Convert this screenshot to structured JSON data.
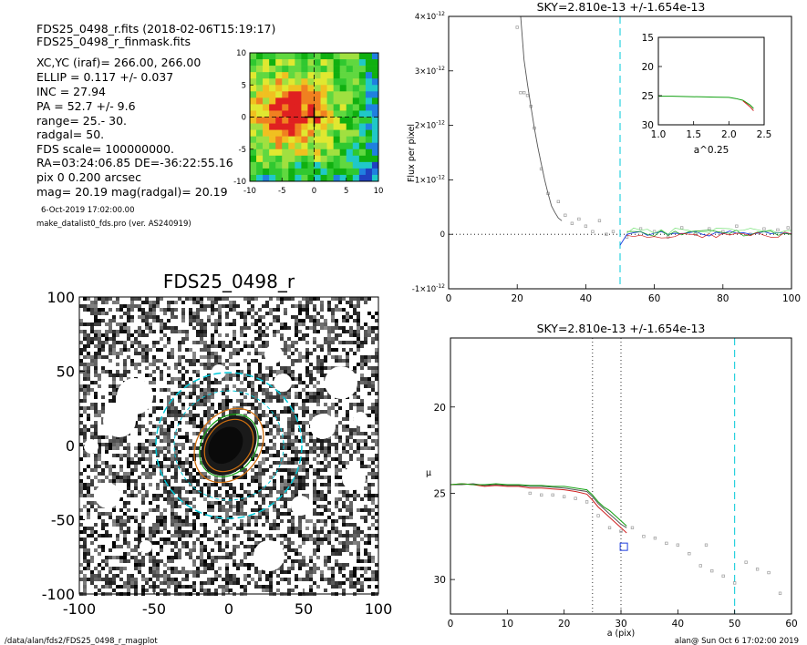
{
  "header": {
    "line1": "FDS25_0498_r.fits  (2018-02-06T15:19:17)",
    "line2": "FDS25_0498_r_finmask.fits",
    "xcyc": "XC,YC (iraf)=   266.00, 266.00",
    "ellip": "ELLIP = 0.117 +/- 0.037",
    "inc": "INC   = 27.94",
    "pa": "PA    = 52.7 +/-   9.6",
    "range": "range=   25.-   30.",
    "radgal": "radgal=   50.",
    "fds_scale": "FDS scale=  100000000.",
    "radec": "RA=03:24:06.85   DE=-36:22:55.16",
    "pix": "pix 0 0.200 arcsec",
    "mag": "mag=  20.19  mag(radgal)=  20.19",
    "date": "6-Oct-2019 17:02:00.00",
    "prog": "make_datalist0_fds.pro (ver. AS240919)"
  },
  "footer": {
    "left": "/data/alan/fds2/FDS25_0498_r_magplot",
    "right": "alan@  Sun Oct  6 17:02:00 2019"
  },
  "colors": {
    "sky_line": "#00c8d8",
    "profile_dark": "#555555",
    "points": "#999999",
    "red": "#d02020",
    "green": "#10a010",
    "orange": "#d07010",
    "blue": "#2040e0",
    "lightgreen": "#70e070"
  },
  "chart_data": [
    {
      "type": "heatmap",
      "name": "residual-map",
      "x_ticks": [
        "-10",
        "-5",
        "0",
        "5",
        "10"
      ],
      "y_ticks": [
        "10",
        "5",
        "0",
        "-5",
        "-10"
      ],
      "xlim": [
        -10,
        10
      ],
      "ylim": [
        -10,
        10
      ]
    },
    {
      "type": "heatmap",
      "name": "galaxy-image",
      "title": "FDS25_0498_r",
      "x_ticks": [
        "-100",
        "-50",
        "0",
        "50",
        "100"
      ],
      "y_ticks": [
        "100",
        "50",
        "0",
        "-50",
        "-100"
      ],
      "xlim": [
        -100,
        100
      ],
      "ylim": [
        -100,
        100
      ],
      "ellipse_center": [
        0,
        0
      ],
      "ellipse_pa": 52.7,
      "circle_radius": 50
    },
    {
      "type": "line",
      "name": "flux-profile",
      "title": "SKY=2.810e-13 +/-1.654e-13",
      "ylabel": "Flux per pixel",
      "xlabel": "",
      "xlim": [
        0,
        100
      ],
      "ylim": [
        -1e-12,
        4e-12
      ],
      "x_ticks": [
        "0",
        "20",
        "40",
        "60",
        "80",
        "100"
      ],
      "y_ticks": [
        {
          "v": 4e-12,
          "mant": "4",
          "exp": "-12"
        },
        {
          "v": 3e-12,
          "mant": "3",
          "exp": "-12"
        },
        {
          "v": 2e-12,
          "mant": "2",
          "exp": "-12"
        },
        {
          "v": 1e-12,
          "mant": "1",
          "exp": "-12"
        },
        {
          "v": 0,
          "mant": "0",
          "exp": ""
        },
        {
          "v": -1e-12,
          "mant": "-1",
          "exp": "-12"
        }
      ],
      "sky_radius": 50,
      "series": [
        {
          "color": "profile_dark",
          "x": [
            21,
            22,
            23,
            24,
            25,
            26,
            27,
            28,
            29,
            30,
            31,
            32,
            33
          ],
          "y": [
            4.2e-12,
            3.2e-12,
            2.75e-12,
            2.35e-12,
            1.95e-12,
            1.6e-12,
            1.3e-12,
            1e-12,
            7.5e-13,
            5.2e-13,
            4e-13,
            3e-13,
            2.5e-13
          ]
        },
        {
          "color": "blue",
          "x": [
            50,
            52,
            54,
            56,
            58,
            60,
            62,
            64,
            66,
            68,
            70,
            72,
            74,
            76,
            78,
            80,
            82,
            84,
            86,
            88,
            90,
            92,
            94,
            96,
            98,
            100
          ],
          "y": [
            -2e-13,
            0.0,
            3e-14,
            5e-14,
            -2e-14,
            2e-14,
            5e-14,
            0.0,
            2e-14,
            1e-14,
            3e-14,
            5e-14,
            0.0,
            -3e-14,
            4e-14,
            1e-14,
            6e-14,
            2e-14,
            3e-14,
            0.0,
            2e-14,
            5e-14,
            1e-14,
            3e-14,
            2e-14,
            1e-14
          ]
        }
      ],
      "points": {
        "color": "points",
        "x": [
          20,
          21,
          22,
          23,
          24,
          25,
          27,
          29,
          32,
          34,
          36,
          38,
          40,
          42,
          44,
          46,
          48,
          52,
          56,
          60,
          64,
          68,
          72,
          76,
          80,
          84,
          88,
          92,
          96,
          99
        ],
        "y": [
          3.8e-12,
          2.6e-12,
          2.6e-12,
          2.55e-12,
          2.35e-12,
          1.95e-12,
          1.2e-12,
          7.5e-13,
          6e-13,
          3.5e-13,
          2e-13,
          2.8e-13,
          1.5e-13,
          5e-14,
          2.5e-13,
          0.0,
          5e-14,
          -5e-14,
          1e-13,
          5e-14,
          -5e-14,
          1.2e-13,
          0.0,
          1e-13,
          5e-14,
          1.5e-13,
          0.0,
          1e-13,
          8e-14,
          1.2e-13
        ]
      }
    },
    {
      "type": "line",
      "name": "inset-profile",
      "xlabel": "a^0.25",
      "ylabel": "",
      "xlim": [
        1.0,
        2.5
      ],
      "ylim": [
        15,
        30
      ],
      "x_ticks": [
        "1.0",
        "1.5",
        "2.0",
        "2.5"
      ],
      "y_ticks": [
        "15",
        "20",
        "25",
        "30"
      ],
      "series": [
        {
          "color": "green",
          "x": [
            1.0,
            1.2,
            1.4,
            1.6,
            1.8,
            2.0,
            2.1,
            2.2,
            2.25,
            2.3,
            2.35
          ],
          "y": [
            25.1,
            25.1,
            25.15,
            25.2,
            25.25,
            25.3,
            25.5,
            25.8,
            26.2,
            26.6,
            27.2
          ]
        },
        {
          "color": "red",
          "x": [
            2.2,
            2.25,
            2.3,
            2.35
          ],
          "y": [
            25.9,
            26.4,
            26.9,
            27.6
          ]
        }
      ]
    },
    {
      "type": "line",
      "name": "mu-profile",
      "title": "SKY=2.810e-13 +/-1.654e-13",
      "xlabel": "a (pix)",
      "ylabel": "μ",
      "xlim": [
        0,
        60
      ],
      "ylim": [
        32,
        16
      ],
      "x_ticks": [
        "0",
        "10",
        "20",
        "30",
        "40",
        "50",
        "60"
      ],
      "y_ticks": [
        "20",
        "25",
        "30"
      ],
      "dotted_x": [
        25,
        30
      ],
      "sky_radius": 50,
      "series": [
        {
          "color": "profile_dark",
          "x": [
            0,
            2,
            4,
            6,
            8,
            10,
            12,
            14,
            16,
            18,
            20,
            22,
            24,
            25,
            26,
            27,
            28,
            29,
            30,
            31
          ],
          "y": [
            24.5,
            24.5,
            24.45,
            24.55,
            24.5,
            24.55,
            24.55,
            24.6,
            24.6,
            24.65,
            24.7,
            24.8,
            24.9,
            25.2,
            25.6,
            25.9,
            26.2,
            26.5,
            26.8,
            27.0
          ]
        },
        {
          "color": "red",
          "x": [
            0,
            2,
            4,
            6,
            8,
            10,
            12,
            14,
            16,
            18,
            20,
            22,
            24,
            25,
            26,
            27,
            28,
            29,
            30,
            31
          ],
          "y": [
            24.5,
            24.45,
            24.5,
            24.6,
            24.55,
            24.6,
            24.6,
            24.7,
            24.7,
            24.75,
            24.8,
            24.9,
            25.05,
            25.4,
            25.8,
            26.1,
            26.4,
            26.7,
            27.0,
            27.3
          ]
        },
        {
          "color": "green",
          "x": [
            0,
            2,
            4,
            6,
            8,
            10,
            12,
            14,
            16,
            18,
            20,
            22,
            24,
            25,
            26,
            27,
            28,
            29,
            30,
            31
          ],
          "y": [
            24.5,
            24.45,
            24.5,
            24.5,
            24.45,
            24.5,
            24.5,
            24.55,
            24.55,
            24.6,
            24.6,
            24.7,
            24.8,
            25.1,
            25.5,
            25.8,
            26.0,
            26.3,
            26.6,
            26.9
          ]
        }
      ],
      "points": {
        "color": "points",
        "x": [
          14,
          16,
          18,
          20,
          22,
          24,
          26,
          28,
          30,
          32,
          34,
          36,
          38,
          40,
          42,
          44,
          45,
          46,
          48,
          50,
          52,
          54,
          56,
          58
        ],
        "y": [
          25.0,
          25.1,
          25.1,
          25.2,
          25.3,
          25.5,
          26.3,
          27.0,
          27.2,
          27.0,
          27.5,
          27.6,
          27.9,
          28.0,
          28.5,
          29.2,
          28.0,
          29.5,
          29.8,
          30.2,
          29.0,
          29.4,
          29.6,
          30.8
        ]
      },
      "sky_marker": {
        "x": 30.5,
        "y": 28.1
      }
    }
  ]
}
